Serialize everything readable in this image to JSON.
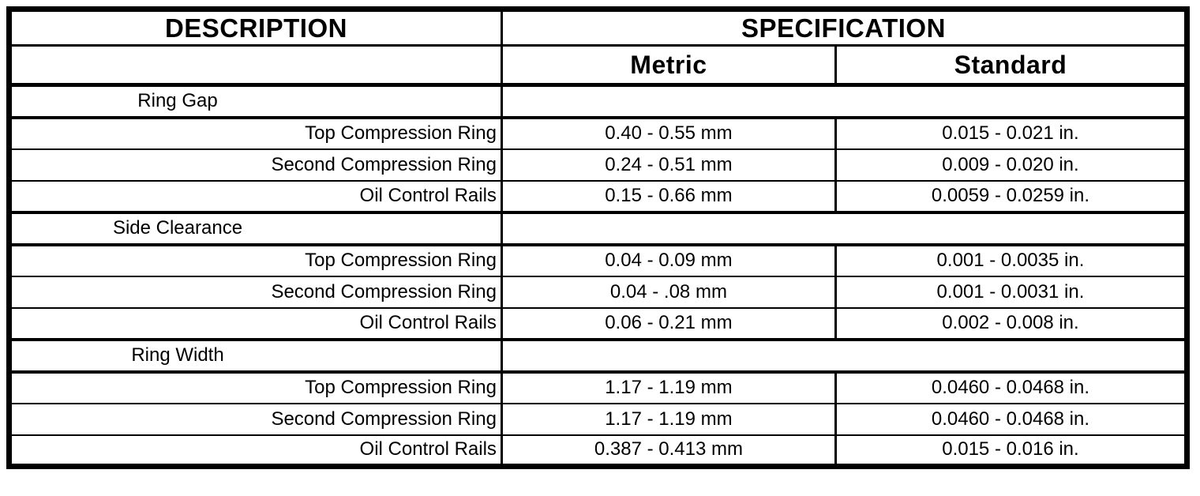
{
  "table": {
    "header": {
      "description": "DESCRIPTION",
      "specification": "SPECIFICATION",
      "metric": "Metric",
      "standard": "Standard"
    },
    "sections": [
      {
        "title": "Ring Gap",
        "rows": [
          {
            "label": "Top Compression Ring",
            "metric": "0.40 - 0.55 mm",
            "standard": "0.015 - 0.021 in."
          },
          {
            "label": "Second Compression Ring",
            "metric": "0.24 - 0.51 mm",
            "standard": "0.009 - 0.020 in."
          },
          {
            "label": "Oil Control Rails",
            "metric": "0.15 - 0.66 mm",
            "standard": "0.0059 - 0.0259 in."
          }
        ]
      },
      {
        "title": "Side Clearance",
        "rows": [
          {
            "label": "Top Compression Ring",
            "metric": "0.04 - 0.09 mm",
            "standard": "0.001 - 0.0035 in."
          },
          {
            "label": "Second Compression Ring",
            "metric": "0.04 - .08 mm",
            "standard": "0.001 - 0.0031 in."
          },
          {
            "label": "Oil Control Rails",
            "metric": "0.06 - 0.21 mm",
            "standard": "0.002 - 0.008 in."
          }
        ]
      },
      {
        "title": "Ring Width",
        "rows": [
          {
            "label": "Top Compression Ring",
            "metric": "1.17 - 1.19 mm",
            "standard": "0.0460 - 0.0468 in."
          },
          {
            "label": "Second Compression Ring",
            "metric": "1.17 - 1.19 mm",
            "standard": "0.0460 - 0.0468 in."
          },
          {
            "label": "Oil Control Rails",
            "metric": "0.387 - 0.413 mm",
            "standard": "0.015 - 0.016 in."
          }
        ]
      }
    ],
    "colors": {
      "border": "#000000",
      "background": "#ffffff",
      "text": "#000000"
    }
  }
}
